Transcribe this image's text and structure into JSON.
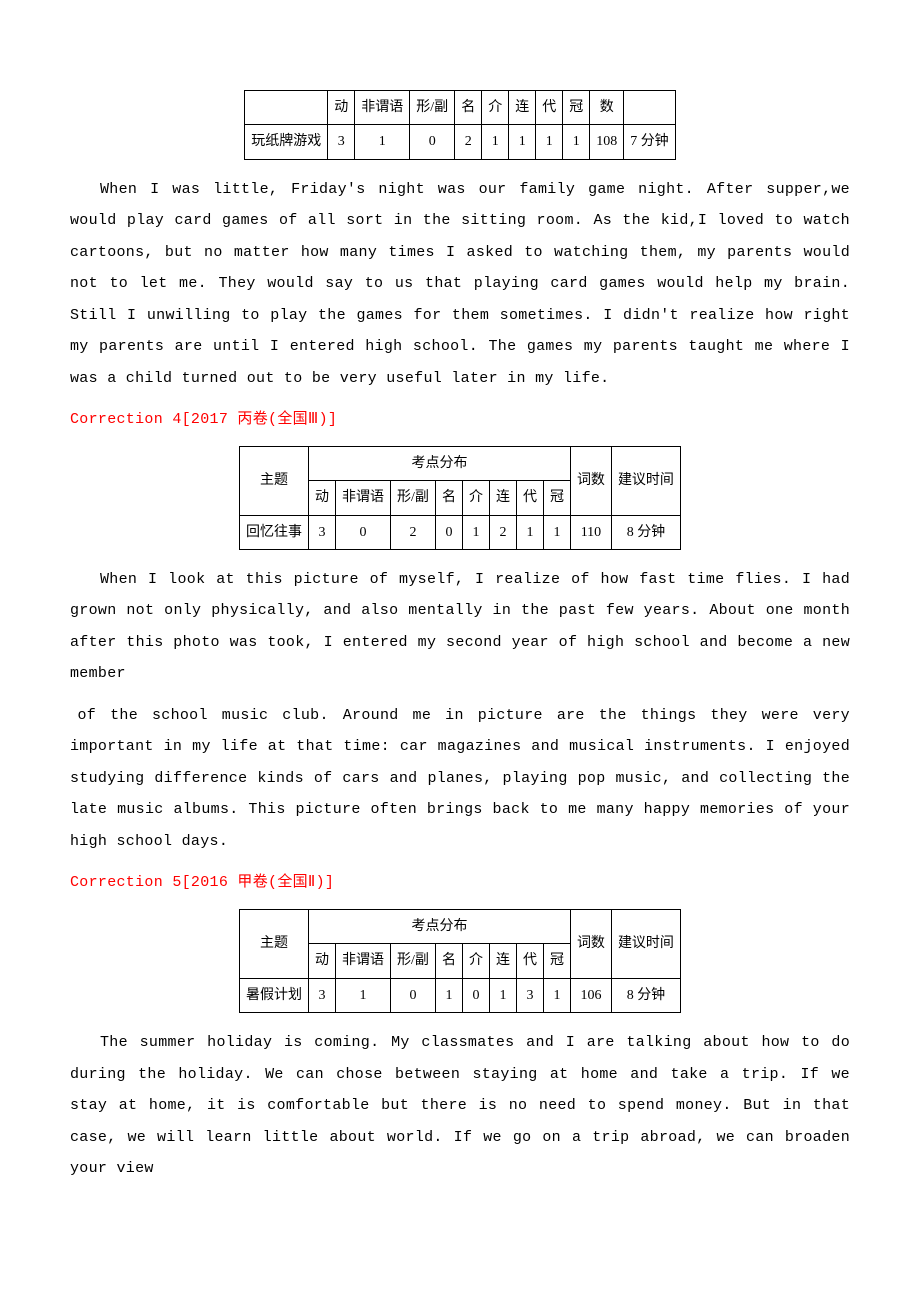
{
  "table1": {
    "headers": [
      "",
      "动",
      "非谓语",
      "形/副",
      "名",
      "介",
      "连",
      "代",
      "冠",
      "数",
      ""
    ],
    "row": [
      "玩纸牌游戏",
      "3",
      "1",
      "0",
      "2",
      "1",
      "1",
      "1",
      "1",
      "108",
      "7 分钟"
    ]
  },
  "passage1": "When I was little, Friday's night was our family game night. After supper,we would play card games of all sort in the sitting room. As the kid,I loved to watch cartoons, but no matter how many times I asked to watching them, my parents would not to let me. They would say to us that playing card games would help my brain. Still I unwilling to play the games for them sometimes. I didn't realize how right my parents are until I entered high school. The games my parents taught me where I was a child turned out to be very useful later in my life.",
  "heading2": "Correction 4[2017 丙卷(全国Ⅲ)]",
  "table2": {
    "topHeader": {
      "subject": "主题",
      "points": "考点分布",
      "words": "词数",
      "time": "建议时间"
    },
    "subHeader": [
      "动",
      "非谓语",
      "形/副",
      "名",
      "介",
      "连",
      "代",
      "冠"
    ],
    "row": [
      "回忆往事",
      "3",
      "0",
      "2",
      "0",
      "1",
      "2",
      "1",
      "1",
      "110",
      "8 分钟"
    ]
  },
  "passage2a": "When I look at this picture of myself, I realize of how fast time flies. I had grown not only physically, and also mentally in the past few years. About one month after this photo was took, I entered my second year of high school and become a new member",
  "passage2b": " of the school music club. Around me in picture are the things they were very important in my life at that time: car magazines and musical instruments. I enjoyed studying difference kinds of cars and planes, playing pop music, and collecting the late music albums. This picture often brings back to me many happy memories of your high school days.",
  "heading3": "Correction 5[2016 甲卷(全国Ⅱ)]",
  "table3": {
    "topHeader": {
      "subject": "主题",
      "points": "考点分布",
      "words": "词数",
      "time": "建议时间"
    },
    "subHeader": [
      "动",
      "非谓语",
      "形/副",
      "名",
      "介",
      "连",
      "代",
      "冠"
    ],
    "row": [
      "暑假计划",
      "3",
      "1",
      "0",
      "1",
      "0",
      "1",
      "3",
      "1",
      "106",
      "8 分钟"
    ]
  },
  "passage3": "The summer holiday is coming. My classmates and I are talking about how to do during the holiday. We can chose between staying at home and take a trip. If we stay at home, it is comfortable but there is no need to spend money. But in that case, we will learn little about world. If we go on a trip abroad, we can broaden your view"
}
